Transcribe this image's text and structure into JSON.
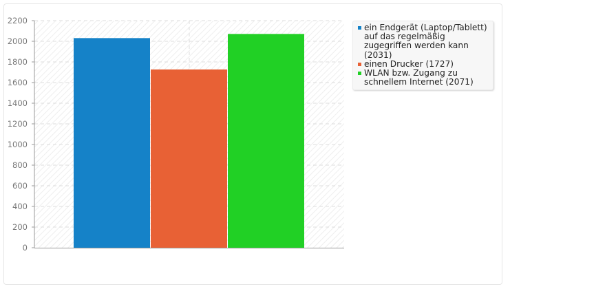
{
  "chart_data": {
    "type": "bar",
    "title": "",
    "xlabel": "",
    "ylabel": "",
    "ylim": [
      0,
      2200
    ],
    "yticks": [
      0,
      200,
      400,
      600,
      800,
      1000,
      1200,
      1400,
      1600,
      1800,
      2000,
      2200
    ],
    "grid": true,
    "legend_position": "right",
    "series": [
      {
        "name": "ein Endgerät (Laptop/Tablett) auf das regelmäßig zugegriffen werden kann (2031)",
        "value": 2031,
        "color": "#1582c8"
      },
      {
        "name": "einen Drucker (1727)",
        "value": 1727,
        "color": "#e86135"
      },
      {
        "name": "WLAN bzw. Zugang zu schnellem Internet (2071)",
        "value": 2071,
        "color": "#21d025"
      }
    ]
  }
}
